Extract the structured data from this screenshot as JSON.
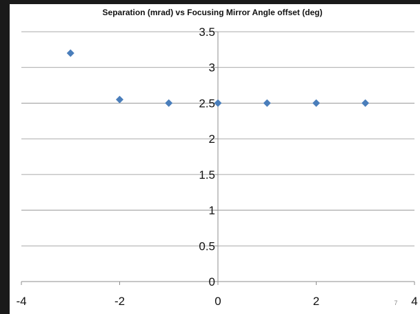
{
  "chart_data": {
    "type": "scatter",
    "title": "Separation (mrad) vs Focusing Mirror Angle offset (deg)",
    "xlabel": "",
    "ylabel": "",
    "xlim": [
      -4,
      4
    ],
    "ylim": [
      0,
      3.5
    ],
    "x_ticks": [
      -4,
      -2,
      0,
      2,
      4
    ],
    "y_ticks": [
      0,
      0.5,
      1,
      1.5,
      2,
      2.5,
      3,
      3.5
    ],
    "x_tick_labels": [
      "-4",
      "-2",
      "0",
      "2",
      "4"
    ],
    "y_tick_labels": [
      "0",
      "0.5",
      "1",
      "1.5",
      "2",
      "2.5",
      "3",
      "3.5"
    ],
    "grid": true,
    "marker": "diamond",
    "color": "#4a7ebb",
    "series": [
      {
        "points": [
          {
            "x": -3,
            "y": 3.2
          },
          {
            "x": -2,
            "y": 2.55
          },
          {
            "x": -1,
            "y": 2.5
          },
          {
            "x": 0,
            "y": 2.5
          },
          {
            "x": 1,
            "y": 2.5
          },
          {
            "x": 2,
            "y": 2.5
          },
          {
            "x": 3,
            "y": 2.5
          }
        ]
      }
    ]
  },
  "page_number": "7"
}
